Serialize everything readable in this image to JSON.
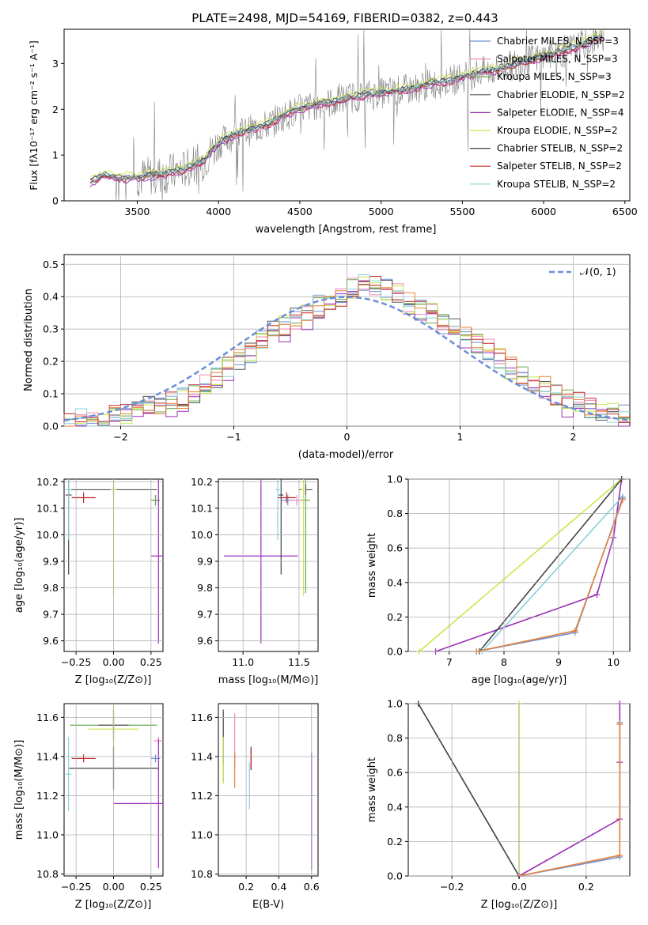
{
  "figure_title": "PLATE=2498, MJD=54169, FIBERID=0382, z=0.443",
  "colors": {
    "Chabrier MILES": "#6a8ed6",
    "Salpeter MILES": "#f08ab8",
    "Kroupa MILES": "#6aa84f",
    "Chabrier ELODIE": "#555555",
    "Salpeter ELODIE": "#9b30b8",
    "Kroupa ELODIE": "#c8e84a",
    "Chabrier STELIB": "#444444",
    "Salpeter STELIB": "#c0282a",
    "Kroupa STELIB": "#88d0dc",
    "orange": "#e8803a",
    "data": "#808080"
  },
  "chart_data": [
    {
      "type": "line",
      "title": "PLATE=2498, MJD=54169, FIBERID=0382, z=0.443",
      "xlabel": "wavelength [Angstrom, rest frame]",
      "ylabel": "Flux [fλ10⁻¹⁷ erg cm⁻² s⁻¹ A⁻¹]",
      "xlim": [
        3050,
        6530
      ],
      "ylim": [
        0,
        3.75
      ],
      "xticks": [
        3500,
        4000,
        4500,
        5000,
        5500,
        6000,
        6500
      ],
      "yticks": [
        0,
        1,
        2,
        3
      ],
      "legend_position": "top-right",
      "legend": [
        "Chabrier MILES, N_SSP=3",
        "Salpeter MILES, N_SSP=3",
        "Kroupa MILES, N_SSP=3",
        "Chabrier ELODIE, N_SSP=2",
        "Salpeter ELODIE, N_SSP=4",
        "Kroupa ELODIE, N_SSP=2",
        "Chabrier STELIB, N_SSP=2",
        "Salpeter STELIB, N_SSP=2",
        "Kroupa STELIB, N_SSP=2"
      ],
      "legend_keys": [
        "Chabrier MILES",
        "Salpeter MILES",
        "Kroupa MILES",
        "Chabrier ELODIE",
        "Salpeter ELODIE",
        "Kroupa ELODIE",
        "Chabrier STELIB",
        "Salpeter STELIB",
        "Kroupa STELIB"
      ],
      "model_x": [
        3210,
        3300,
        3400,
        3500,
        3600,
        3700,
        3800,
        3900,
        4000,
        4100,
        4200,
        4300,
        4400,
        4500,
        4600,
        4700,
        4800,
        4900,
        5000,
        5100,
        5200,
        5300,
        5400,
        5500,
        5600,
        5700,
        5800,
        5900,
        6000,
        6100,
        6200,
        6300,
        6370
      ],
      "model_y": [
        0.4,
        0.55,
        0.48,
        0.5,
        0.55,
        0.6,
        0.7,
        0.85,
        1.25,
        1.45,
        1.55,
        1.65,
        1.85,
        2.0,
        2.1,
        2.15,
        2.25,
        2.3,
        2.35,
        2.4,
        2.45,
        2.55,
        2.6,
        2.7,
        2.8,
        2.85,
        2.95,
        3.05,
        3.15,
        3.25,
        3.35,
        3.5,
        3.6
      ],
      "data_series": "observed spectrum (noisy, grey)"
    },
    {
      "type": "line",
      "xlabel": "(data-model)/error",
      "ylabel": "Normed distribution",
      "xlim": [
        -2.5,
        2.5
      ],
      "ylim": [
        0,
        0.53
      ],
      "xticks": [
        -2,
        -1,
        0,
        1,
        2
      ],
      "yticks": [
        0.0,
        0.1,
        0.2,
        0.3,
        0.4,
        0.5
      ],
      "legend_position": "top-right",
      "legend": [
        "𝒩(0, 1)"
      ],
      "gaussian": {
        "mu": 0,
        "sigma": 1
      },
      "histogram_bins": [
        -2.5,
        -2.4,
        -2.3,
        -2.2,
        -2.1,
        -2.0,
        -1.9,
        -1.8,
        -1.7,
        -1.6,
        -1.5,
        -1.4,
        -1.3,
        -1.2,
        -1.1,
        -1.0,
        -0.9,
        -0.8,
        -0.7,
        -0.6,
        -0.5,
        -0.4,
        -0.3,
        -0.2,
        -0.1,
        0.0,
        0.1,
        0.2,
        0.3,
        0.4,
        0.5,
        0.6,
        0.7,
        0.8,
        0.9,
        1.0,
        1.1,
        1.2,
        1.3,
        1.4,
        1.5,
        1.6,
        1.7,
        1.8,
        1.9,
        2.0,
        2.1,
        2.2,
        2.3,
        2.4,
        2.5
      ],
      "histogram_base": [
        0.01,
        0.02,
        0.02,
        0.03,
        0.03,
        0.04,
        0.06,
        0.07,
        0.07,
        0.08,
        0.09,
        0.1,
        0.13,
        0.15,
        0.18,
        0.21,
        0.23,
        0.26,
        0.29,
        0.31,
        0.33,
        0.35,
        0.37,
        0.38,
        0.4,
        0.43,
        0.44,
        0.43,
        0.42,
        0.41,
        0.38,
        0.36,
        0.35,
        0.32,
        0.3,
        0.28,
        0.26,
        0.24,
        0.21,
        0.18,
        0.16,
        0.14,
        0.12,
        0.1,
        0.08,
        0.07,
        0.06,
        0.05,
        0.04,
        0.04
      ]
    },
    {
      "type": "scatter",
      "xlabel": "Z [log₁₀(Z/Z⊙)]",
      "ylabel": "age  [log₁₀(age/yr)]",
      "xlim": [
        -0.33,
        0.33
      ],
      "ylim": [
        9.56,
        10.21
      ],
      "xticks": [
        -0.25,
        0.0,
        0.25
      ],
      "yticks": [
        9.6,
        9.7,
        9.8,
        9.9,
        10.0,
        10.1,
        10.2
      ],
      "points": [
        {
          "model": "Chabrier MILES",
          "x": 0.28,
          "y": 10.13,
          "xerr": 0.03,
          "yerr": 0.02
        },
        {
          "model": "Salpeter MILES",
          "x": 0.28,
          "y": 10.13,
          "xerr": 0.03,
          "yerr": 0.02
        },
        {
          "model": "Kroupa MILES",
          "x": 0.28,
          "y": 10.13,
          "xerr": 0.03,
          "yerr": 0.02
        },
        {
          "model": "Chabrier ELODIE",
          "x": 0.0,
          "y": 10.17,
          "xerr": 0.29,
          "yerr": 0.02
        },
        {
          "model": "Salpeter ELODIE",
          "x": 0.3,
          "y": 9.92,
          "xerr": 0.05,
          "yerr": 0.33
        },
        {
          "model": "Kroupa ELODIE",
          "x": 0.0,
          "y": 10.17,
          "xerr": 0.02,
          "yerr": 0.4
        },
        {
          "model": "Chabrier STELIB",
          "x": -0.3,
          "y": 10.15,
          "xerr": 0.02,
          "yerr": 0.3
        },
        {
          "model": "Salpeter STELIB",
          "x": -0.2,
          "y": 10.14,
          "xerr": 0.08,
          "yerr": 0.02
        },
        {
          "model": "Kroupa STELIB",
          "x": -0.3,
          "y": 10.17,
          "xerr": 0.02,
          "yerr": 0.19
        }
      ]
    },
    {
      "type": "scatter",
      "xlabel": "mass [log₁₀(M/M⊙)]",
      "xlim": [
        10.78,
        11.67
      ],
      "ylim": [
        9.56,
        10.21
      ],
      "xticks": [
        11.0,
        11.5
      ],
      "yticks": [
        9.6,
        9.7,
        9.8,
        9.9,
        10.0,
        10.1,
        10.2
      ],
      "points": [
        {
          "model": "Chabrier MILES",
          "x": 11.4,
          "y": 10.13,
          "xerr": 0.06,
          "yerr": 0.02
        },
        {
          "model": "Salpeter MILES",
          "x": 11.48,
          "y": 10.13,
          "xerr": 0.06,
          "yerr": 0.02
        },
        {
          "model": "Kroupa MILES",
          "x": 11.56,
          "y": 10.13,
          "xerr": 0.04,
          "yerr": 0.35
        },
        {
          "model": "Chabrier ELODIE",
          "x": 11.56,
          "y": 10.17,
          "xerr": 0.06,
          "yerr": 0.02
        },
        {
          "model": "Salpeter ELODIE",
          "x": 11.16,
          "y": 9.92,
          "xerr": 0.33,
          "yerr": 0.33
        },
        {
          "model": "Kroupa ELODIE",
          "x": 11.54,
          "y": 10.17,
          "xerr": 0.02,
          "yerr": 0.4
        },
        {
          "model": "Chabrier STELIB",
          "x": 11.34,
          "y": 10.15,
          "xerr": 0.02,
          "yerr": 0.3
        },
        {
          "model": "Salpeter STELIB",
          "x": 11.39,
          "y": 10.14,
          "xerr": 0.08,
          "yerr": 0.02
        },
        {
          "model": "Kroupa STELIB",
          "x": 11.31,
          "y": 10.17,
          "xerr": 0.02,
          "yerr": 0.19
        }
      ]
    },
    {
      "type": "line",
      "xlabel": "age  [log₁₀(age/yr)]",
      "ylabel": "mass weight",
      "xlim": [
        6.25,
        10.3
      ],
      "ylim": [
        0,
        1.0
      ],
      "xticks": [
        7,
        8,
        9,
        10
      ],
      "yticks": [
        0.0,
        0.2,
        0.4,
        0.6,
        0.8,
        1.0
      ],
      "series": [
        {
          "model": "Salpeter ELODIE",
          "x": [
            6.75,
            9.7,
            10.0,
            10.15
          ],
          "y": [
            0.0,
            0.33,
            0.66,
            1.0
          ]
        },
        {
          "model": "Kroupa ELODIE",
          "x": [
            6.45,
            10.15
          ],
          "y": [
            0.0,
            1.0
          ]
        },
        {
          "model": "Chabrier STELIB",
          "x": [
            7.55,
            10.15
          ],
          "y": [
            0.0,
            1.0
          ]
        },
        {
          "model": "Kroupa STELIB",
          "x": [
            7.6,
            10.17
          ],
          "y": [
            0.0,
            0.9
          ]
        },
        {
          "model": "Chabrier MILES",
          "x": [
            7.5,
            9.3,
            10.17
          ],
          "y": [
            0.0,
            0.11,
            0.89
          ]
        },
        {
          "model": "orange",
          "x": [
            7.5,
            9.3,
            10.17
          ],
          "y": [
            0.0,
            0.12,
            0.88
          ]
        }
      ]
    },
    {
      "type": "scatter",
      "xlabel": "Z [log₁₀(Z/Z⊙)]",
      "ylabel": "mass [log₁₀(M/M⊙)]",
      "xlim": [
        -0.33,
        0.33
      ],
      "ylim": [
        10.79,
        11.67
      ],
      "xticks": [
        -0.25,
        0.0,
        0.25
      ],
      "yticks": [
        10.8,
        11.0,
        11.2,
        11.4,
        11.6
      ],
      "points": [
        {
          "model": "Chabrier MILES",
          "x": 0.28,
          "y": 11.39,
          "xerr": 0.03,
          "yerr": 0.02
        },
        {
          "model": "Salpeter MILES",
          "x": 0.3,
          "y": 11.48,
          "xerr": 0.03,
          "yerr": 0.02
        },
        {
          "model": "Kroupa MILES",
          "x": 0.0,
          "y": 11.56,
          "xerr": 0.29,
          "yerr": 0.04
        },
        {
          "model": "Chabrier ELODIE",
          "x": 0.0,
          "y": 11.56,
          "xerr": 0.1,
          "yerr": 0.08
        },
        {
          "model": "Salpeter ELODIE",
          "x": 0.3,
          "y": 11.16,
          "xerr": 0.3,
          "yerr": 0.33
        },
        {
          "model": "Kroupa ELODIE",
          "x": 0.0,
          "y": 11.54,
          "xerr": 0.17,
          "yerr": 0.3
        },
        {
          "model": "Chabrier STELIB",
          "x": 0.0,
          "y": 11.34,
          "xerr": 0.3,
          "yerr": 0.11
        },
        {
          "model": "Salpeter STELIB",
          "x": -0.2,
          "y": 11.39,
          "xerr": 0.08,
          "yerr": 0.02
        },
        {
          "model": "Kroupa STELIB",
          "x": -0.3,
          "y": 11.31,
          "xerr": 0.02,
          "yerr": 0.19
        }
      ]
    },
    {
      "type": "scatter",
      "xlabel": "E(B-V)",
      "xlim": [
        0.03,
        0.64
      ],
      "ylim": [
        10.79,
        11.67
      ],
      "xticks": [
        0.2,
        0.4,
        0.6
      ],
      "yticks": [
        10.8,
        11.0,
        11.2,
        11.4,
        11.6
      ],
      "points": [
        {
          "model": "Chabrier MILES",
          "x": 0.13,
          "y": 11.39,
          "yerr": 0.02
        },
        {
          "model": "Salpeter MILES",
          "x": 0.13,
          "y": 11.48,
          "yerr": 0.14
        },
        {
          "model": "Kroupa MILES",
          "x": 0.06,
          "y": 11.45,
          "yerr": 0.18
        },
        {
          "model": "Chabrier ELODIE",
          "x": 0.06,
          "y": 11.5,
          "yerr": 0.14
        },
        {
          "model": "Salpeter ELODIE",
          "x": 0.6,
          "y": 11.12,
          "yerr": 0.3
        },
        {
          "model": "Kroupa ELODIE",
          "x": 0.06,
          "y": 11.38,
          "yerr": 0.12
        },
        {
          "model": "Chabrier STELIB",
          "x": 0.23,
          "y": 11.39,
          "yerr": 0.06
        },
        {
          "model": "Salpeter STELIB",
          "x": 0.23,
          "y": 11.39,
          "yerr": 0.05
        },
        {
          "model": "Kroupa STELIB",
          "x": 0.22,
          "y": 11.25,
          "yerr": 0.12
        },
        {
          "model": "orange",
          "x": 0.13,
          "y": 11.33,
          "yerr": 0.09
        }
      ]
    },
    {
      "type": "line",
      "xlabel": "Z [log₁₀(Z/Z⊙)]",
      "ylabel": "mass weight",
      "xlim": [
        -0.33,
        0.33
      ],
      "ylim": [
        0,
        1.0
      ],
      "xticks": [
        -0.2,
        0.0,
        0.2
      ],
      "yticks": [
        0.0,
        0.2,
        0.4,
        0.6,
        0.8,
        1.0
      ],
      "series": [
        {
          "model": "Kroupa STELIB",
          "x": [
            -0.3,
            0.0
          ],
          "y": [
            1.0,
            0.0
          ]
        },
        {
          "model": "Chabrier STELIB",
          "x": [
            -0.3,
            0.0
          ],
          "y": [
            1.0,
            0.0
          ]
        },
        {
          "model": "Kroupa ELODIE",
          "x": [
            0.0,
            0.0
          ],
          "y": [
            0.0,
            1.0
          ]
        },
        {
          "model": "Salpeter ELODIE",
          "x": [
            0.0,
            0.3,
            0.3,
            0.3
          ],
          "y": [
            0.0,
            0.33,
            0.66,
            1.0
          ]
        },
        {
          "model": "Chabrier MILES",
          "x": [
            0.0,
            0.3,
            0.3
          ],
          "y": [
            0.0,
            0.11,
            0.89
          ]
        },
        {
          "model": "orange",
          "x": [
            0.0,
            0.3,
            0.3
          ],
          "y": [
            0.0,
            0.12,
            0.88
          ]
        }
      ]
    }
  ]
}
